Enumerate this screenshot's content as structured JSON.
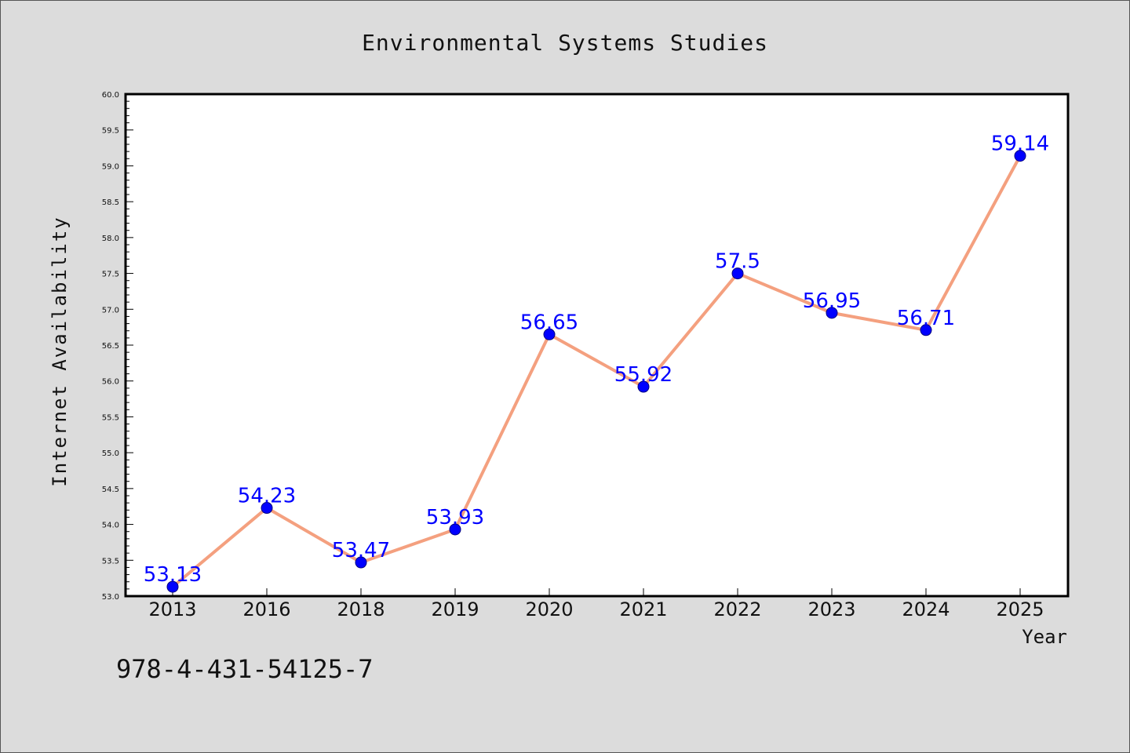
{
  "chart_data": {
    "type": "line",
    "title": "Environmental Systems Studies",
    "xlabel": "Year",
    "ylabel": "Internet Availability",
    "categories": [
      "2013",
      "2016",
      "2018",
      "2019",
      "2020",
      "2021",
      "2022",
      "2023",
      "2024",
      "2025"
    ],
    "values": [
      53.13,
      54.23,
      53.47,
      53.93,
      56.65,
      55.92,
      57.5,
      56.95,
      56.71,
      59.14
    ],
    "data_labels": [
      "53.13",
      "54.23",
      "53.47",
      "53.93",
      "56.65",
      "55.92",
      "57.5",
      "56.95",
      "56.71",
      "59.14"
    ],
    "ylim": [
      53.0,
      60.0
    ],
    "yticks": [
      "53.0",
      "53.5",
      "54.0",
      "54.5",
      "55.0",
      "55.5",
      "56.0",
      "56.5",
      "57.0",
      "57.5",
      "58.0",
      "58.5",
      "59.0",
      "59.5",
      "60.0"
    ],
    "grid": false,
    "legend": "none",
    "line_color": "#f4a07f",
    "marker_color": "#0000ff",
    "label_color": "#0000ff",
    "background_color": "#dcdcdc",
    "plot_background_color": "#ffffff"
  },
  "footer": {
    "isbn": "978-4-431-54125-7"
  }
}
